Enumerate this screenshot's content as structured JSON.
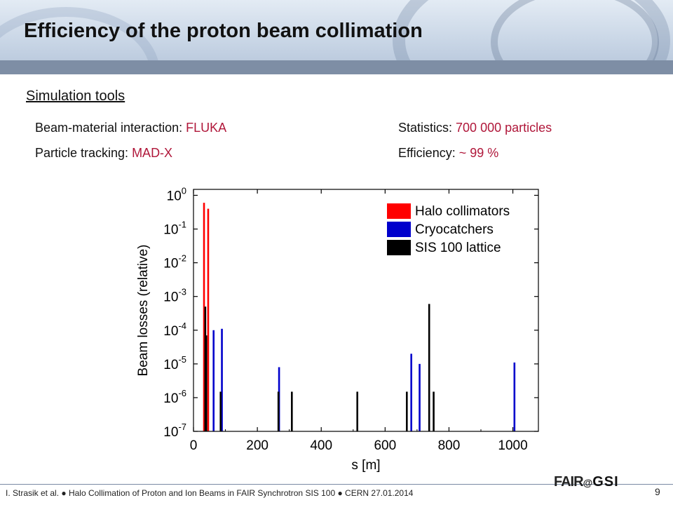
{
  "header": {
    "title": "Efficiency of the proton beam collimation"
  },
  "subtitle": "Simulation tools",
  "info": {
    "beam_material_label": "Beam-material interaction: ",
    "beam_material_value": "FLUKA",
    "particle_tracking_label": "Particle tracking: ",
    "particle_tracking_value": "MAD-X",
    "statistics_label": "Statistics: ",
    "statistics_value": "700 000 particles",
    "efficiency_label": "Efficiency: ",
    "efficiency_value": "~ 99 %"
  },
  "colors": {
    "accent_value": "#b0173a",
    "halo": "#ff0000",
    "cryo": "#0000cc",
    "lattice": "#000000"
  },
  "footer": {
    "text": "I. Strasik et al.  ●  Halo Collimation of Proton and Ion Beams in FAIR Synchrotron SIS 100  ●  CERN 27.01.2014",
    "page_number": "9",
    "logo_fair": "FAIR",
    "logo_at": "@",
    "logo_gsi": "GSI"
  },
  "chart_data": {
    "type": "bar",
    "xlabel": "s [m]",
    "ylabel": "Beam losses (relative)",
    "x_scale": "linear",
    "y_scale": "log",
    "xlim": [
      0,
      1080
    ],
    "ylim": [
      1e-07,
      1.5
    ],
    "x_ticks": [
      0,
      200,
      400,
      600,
      800,
      1000
    ],
    "y_ticks": [
      {
        "value": 1e-07,
        "base": "10",
        "exp": "-7"
      },
      {
        "value": 1e-06,
        "base": "10",
        "exp": "-6"
      },
      {
        "value": 1e-05,
        "base": "10",
        "exp": "-5"
      },
      {
        "value": 0.0001,
        "base": "10",
        "exp": "-4"
      },
      {
        "value": 0.001,
        "base": "10",
        "exp": "-3"
      },
      {
        "value": 0.01,
        "base": "10",
        "exp": "-2"
      },
      {
        "value": 0.1,
        "base": "10",
        "exp": "-1"
      },
      {
        "value": 1,
        "base": "10",
        "exp": "0"
      }
    ],
    "legend_position": "top-right",
    "grid": false,
    "series": [
      {
        "name": "Halo collimators",
        "color": "#ff0000",
        "points": [
          {
            "x": 33,
            "y": 0.6
          },
          {
            "x": 46,
            "y": 0.4
          }
        ]
      },
      {
        "name": "Cryocatchers",
        "color": "#0000cc",
        "points": [
          {
            "x": 63,
            "y": 0.0001
          },
          {
            "x": 89,
            "y": 0.00011
          },
          {
            "x": 268,
            "y": 8e-06
          },
          {
            "x": 682,
            "y": 2e-05
          },
          {
            "x": 708,
            "y": 1e-05
          },
          {
            "x": 1005,
            "y": 1.1e-05
          }
        ]
      },
      {
        "name": "SIS 100 lattice",
        "color": "#000000",
        "points": [
          {
            "x": 37,
            "y": 0.0005
          },
          {
            "x": 40,
            "y": 7e-05
          },
          {
            "x": 85,
            "y": 1.5e-06
          },
          {
            "x": 266,
            "y": 1.5e-06
          },
          {
            "x": 308,
            "y": 1.5e-06
          },
          {
            "x": 513,
            "y": 1.5e-06
          },
          {
            "x": 668,
            "y": 1.5e-06
          },
          {
            "x": 738,
            "y": 0.0006
          },
          {
            "x": 752,
            "y": 1.5e-06
          }
        ]
      }
    ]
  }
}
